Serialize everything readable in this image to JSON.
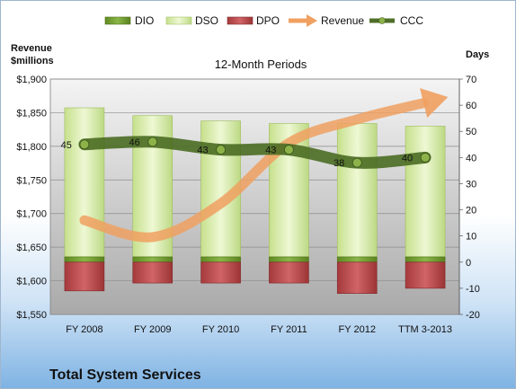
{
  "chart_data": {
    "type": "bar",
    "company": "Total System Services",
    "title": "12-Month Periods",
    "y_left_label_line1": "Revenue",
    "y_left_label_line2": "$millions",
    "y_right_label": "Days",
    "categories": [
      "FY 2008",
      "FY 2009",
      "FY 2010",
      "FY 2011",
      "FY 2012",
      "TTM 3-2013"
    ],
    "ylim_left": [
      1550,
      1900
    ],
    "ylim_right": [
      -20,
      70
    ],
    "left_ticks": [
      "$1,550",
      "$1,600",
      "$1,650",
      "$1,700",
      "$1,750",
      "$1,800",
      "$1,850",
      "$1,900"
    ],
    "right_ticks": [
      "-20",
      "-10",
      "0",
      "10",
      "20",
      "30",
      "40",
      "50",
      "60",
      "70"
    ],
    "legend": [
      {
        "name": "DIO",
        "color": "#6f9a2a"
      },
      {
        "name": "DSO",
        "color": "#d7eba8"
      },
      {
        "name": "DPO",
        "color": "#b8484a"
      },
      {
        "name": "Revenue",
        "color": "#f0a060"
      },
      {
        "name": "CCC",
        "color": "#4f6f2a"
      }
    ],
    "series": [
      {
        "name": "DIO",
        "axis": "right",
        "values": [
          2,
          2,
          2,
          2,
          2,
          2
        ]
      },
      {
        "name": "DSO",
        "axis": "right",
        "values": [
          57,
          54,
          52,
          51,
          51,
          50
        ]
      },
      {
        "name": "DPO",
        "axis": "right",
        "values": [
          -11,
          -8,
          -8,
          -8,
          -12,
          -10
        ]
      },
      {
        "name": "Revenue",
        "axis": "left",
        "values": [
          1690,
          1665,
          1715,
          1805,
          1840,
          1865
        ]
      },
      {
        "name": "CCC",
        "axis": "right",
        "values": [
          45,
          46,
          43,
          43,
          38,
          40
        ],
        "labels": [
          "45",
          "46",
          "43",
          "43",
          "38",
          "40"
        ]
      }
    ],
    "grid": true,
    "legend_position": "top"
  }
}
